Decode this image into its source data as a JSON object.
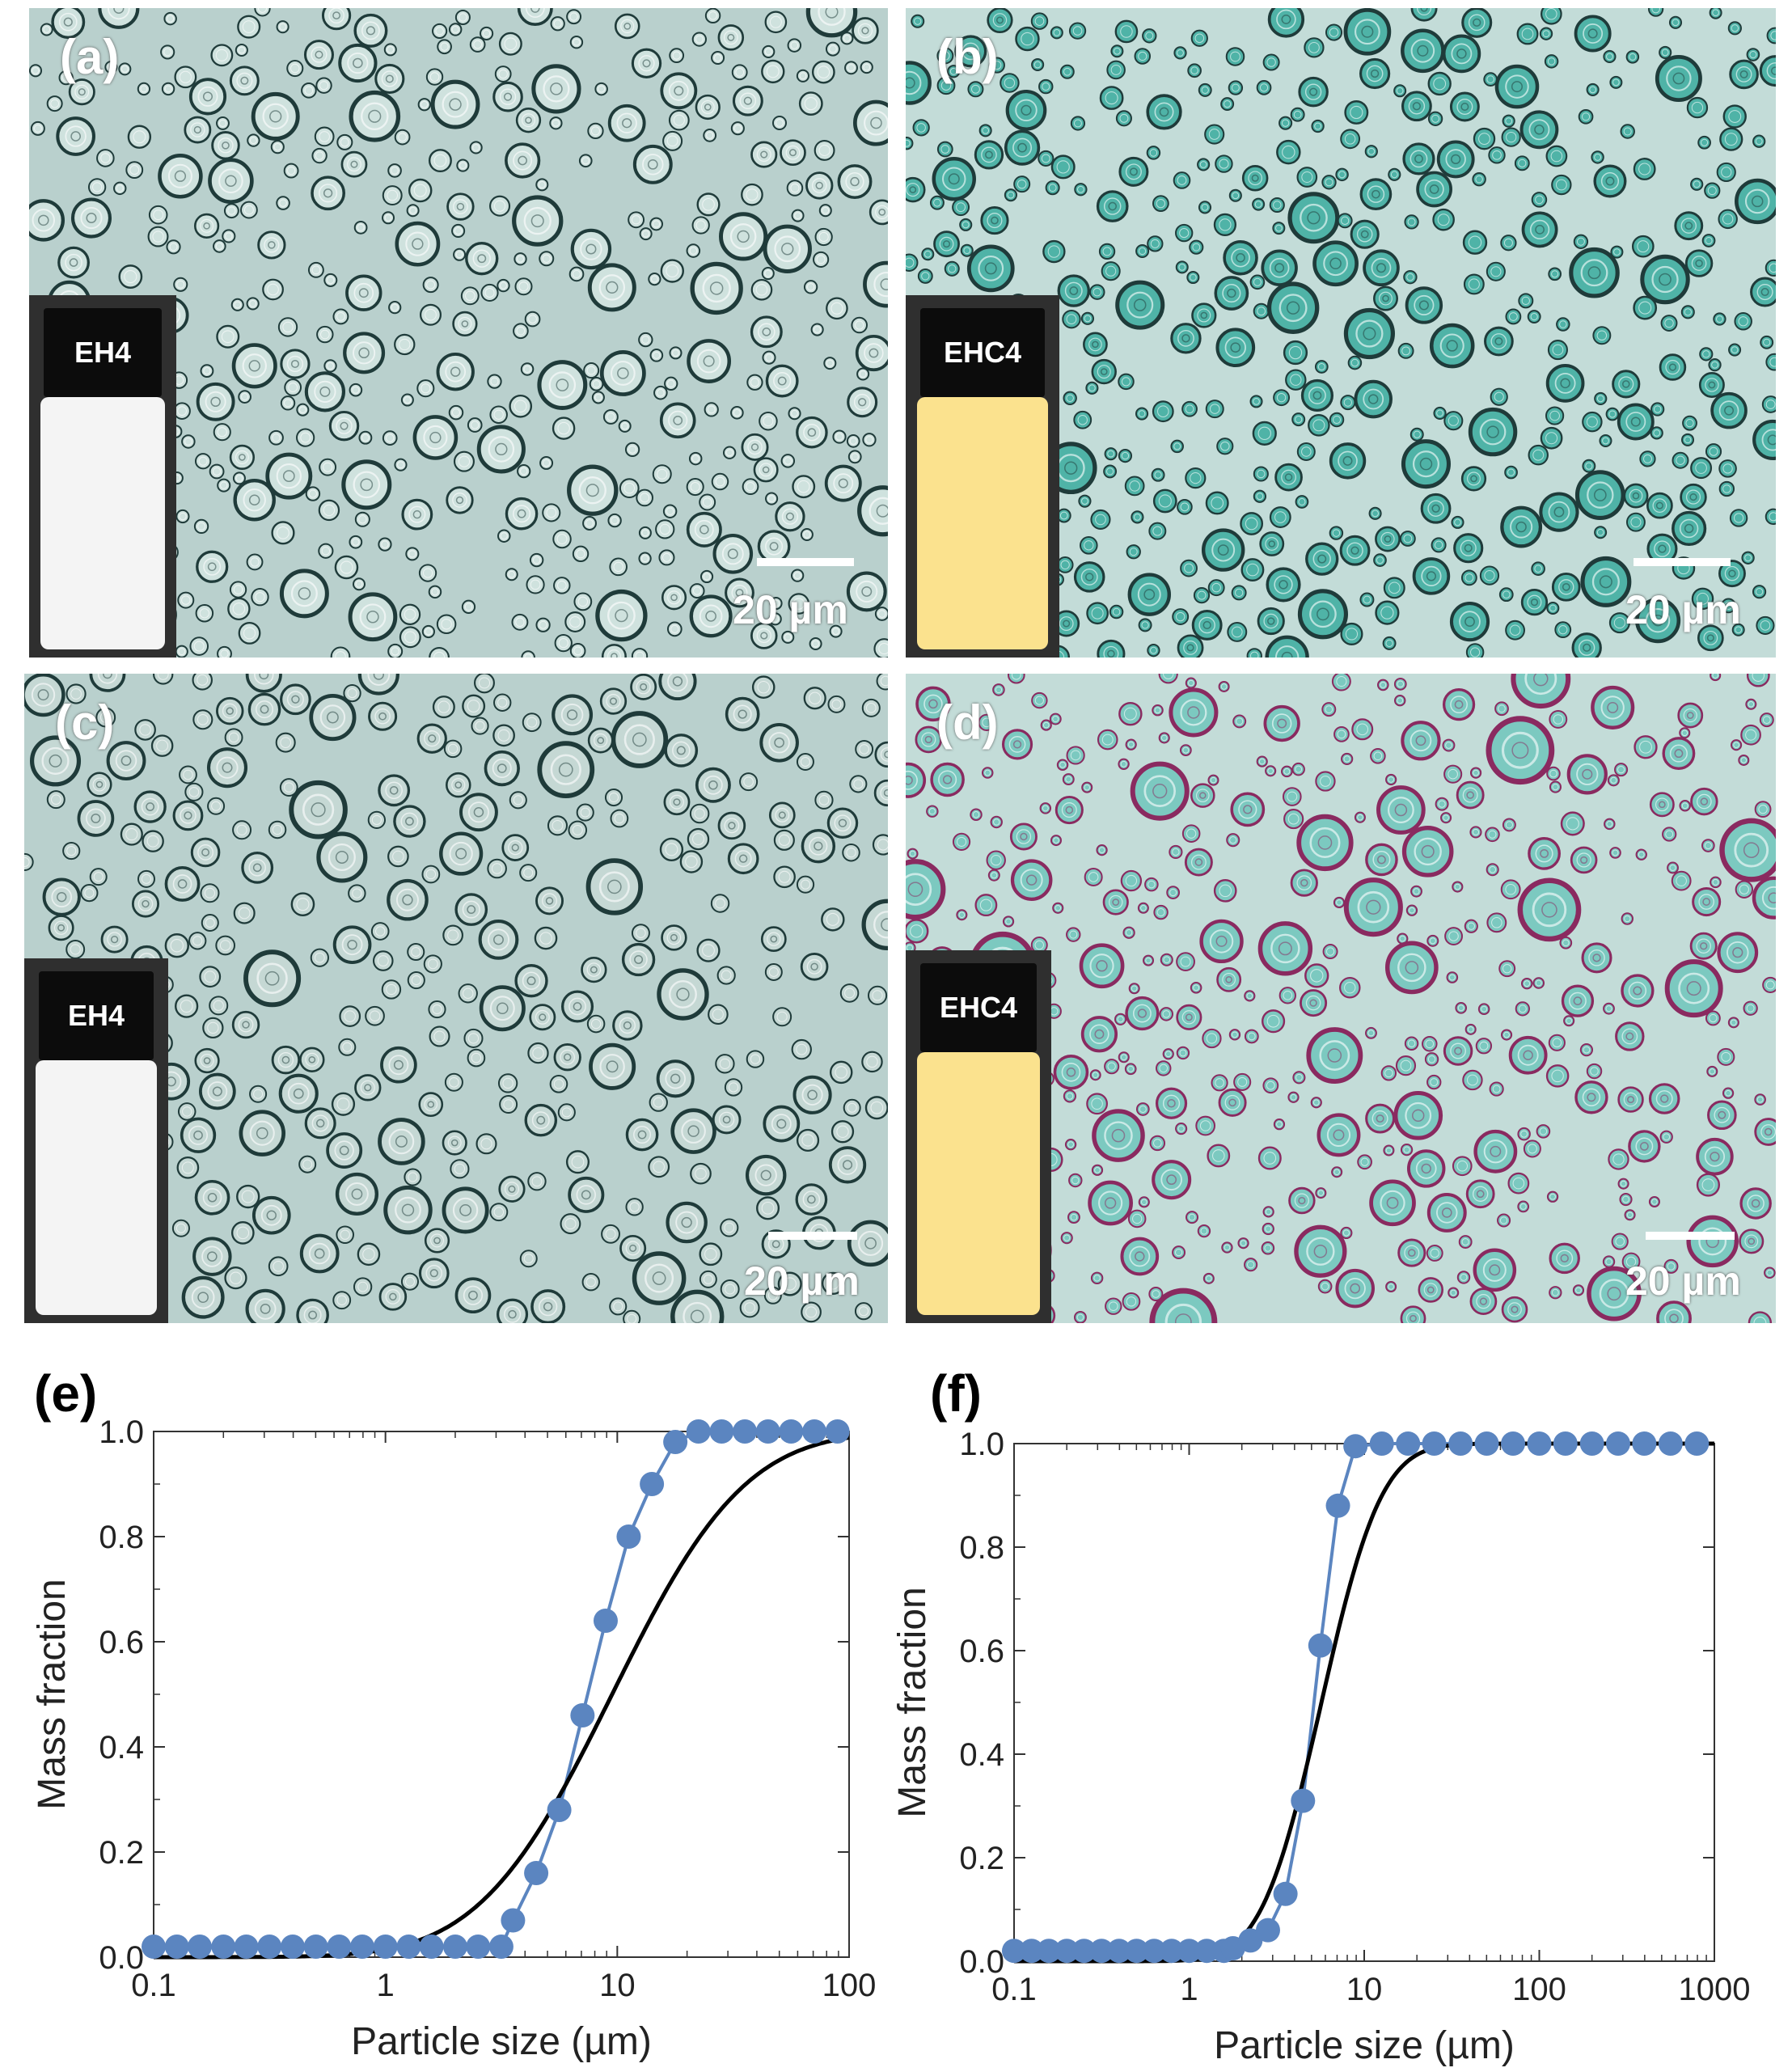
{
  "panels": {
    "a": {
      "label": "(a)",
      "vial_label": "EH4",
      "scale": "20 µm"
    },
    "b": {
      "label": "(b)",
      "vial_label": "EHC4",
      "scale": "20 µm"
    },
    "c": {
      "label": "(c)",
      "vial_label": "EH4",
      "scale": "20 µm"
    },
    "d": {
      "label": "(d)",
      "vial_label": "EHC4",
      "scale": "20 µm"
    }
  },
  "colors": {
    "micro_bg_ac": "#b9d0cd",
    "micro_bg_bd": "#c3dcd8",
    "ring_dark": "#1f3b3a",
    "ring_magenta": "#8a2a60",
    "fill_teal": "#4fb3a7",
    "vial_white": "#f4f4f4",
    "vial_yellow": "#fbe28e",
    "data_blue": "#5b85c0",
    "fit_black": "#000000"
  },
  "chart_labels": {
    "e": "(e)",
    "f": "(f)"
  },
  "chart_data": [
    {
      "type": "scatter",
      "xlabel": "Particle size (µm)",
      "ylabel": "Mass fraction",
      "xscale": "log",
      "xlim": [
        0.1,
        100
      ],
      "ylim": [
        0,
        1.0
      ],
      "xticks": [
        "0.1",
        "1",
        "10",
        "100"
      ],
      "yticks": [
        "0.0",
        "0.2",
        "0.4",
        "0.6",
        "0.8",
        "1.0"
      ],
      "series": [
        {
          "kind": "points+line",
          "color": "#5b85c0",
          "x": [
            0.1,
            0.126,
            0.158,
            0.2,
            0.251,
            0.316,
            0.398,
            0.501,
            0.631,
            0.794,
            1.0,
            1.26,
            1.58,
            2.0,
            2.51,
            3.16,
            3.55,
            4.47,
            5.62,
            7.08,
            8.91,
            11.2,
            14.1,
            17.8,
            22.4,
            28.2,
            35.5,
            44.7,
            56.2,
            70.8,
            89.1
          ],
          "y": [
            0.02,
            0.02,
            0.02,
            0.02,
            0.02,
            0.02,
            0.02,
            0.02,
            0.02,
            0.02,
            0.02,
            0.02,
            0.02,
            0.02,
            0.02,
            0.02,
            0.07,
            0.16,
            0.28,
            0.46,
            0.64,
            0.8,
            0.9,
            0.98,
            1.0,
            1.0,
            1.0,
            1.0,
            1.0,
            1.0,
            1.0
          ]
        },
        {
          "kind": "fit",
          "color": "#000000",
          "x_median": 9.5,
          "sigma": 0.45
        }
      ]
    },
    {
      "type": "scatter",
      "xlabel": "Particle size (µm)",
      "ylabel": "Mass fraction",
      "xscale": "log",
      "xlim": [
        0.1,
        1000
      ],
      "ylim": [
        0,
        1.0
      ],
      "xticks": [
        "0.1",
        "1",
        "10",
        "100",
        "1000"
      ],
      "yticks": [
        "0.0",
        "0.2",
        "0.4",
        "0.6",
        "0.8",
        "1.0"
      ],
      "series": [
        {
          "kind": "points+line",
          "color": "#5b85c0",
          "x": [
            0.1,
            0.126,
            0.158,
            0.2,
            0.251,
            0.316,
            0.398,
            0.501,
            0.631,
            0.794,
            1.0,
            1.26,
            1.58,
            1.78,
            2.24,
            2.82,
            3.55,
            4.47,
            5.62,
            7.08,
            8.91,
            12.6,
            17.8,
            25.1,
            35.5,
            50.1,
            70.8,
            100,
            141,
            200,
            282,
            398,
            562,
            794
          ],
          "y": [
            0.02,
            0.02,
            0.02,
            0.02,
            0.02,
            0.02,
            0.02,
            0.02,
            0.02,
            0.02,
            0.02,
            0.02,
            0.02,
            0.025,
            0.04,
            0.06,
            0.13,
            0.31,
            0.61,
            0.88,
            0.995,
            1.0,
            1.0,
            1.0,
            1.0,
            1.0,
            1.0,
            1.0,
            1.0,
            1.0,
            1.0,
            1.0,
            1.0,
            1.0
          ]
        },
        {
          "kind": "fit",
          "color": "#000000",
          "x_median": 5.7,
          "sigma": 0.27
        }
      ]
    }
  ]
}
